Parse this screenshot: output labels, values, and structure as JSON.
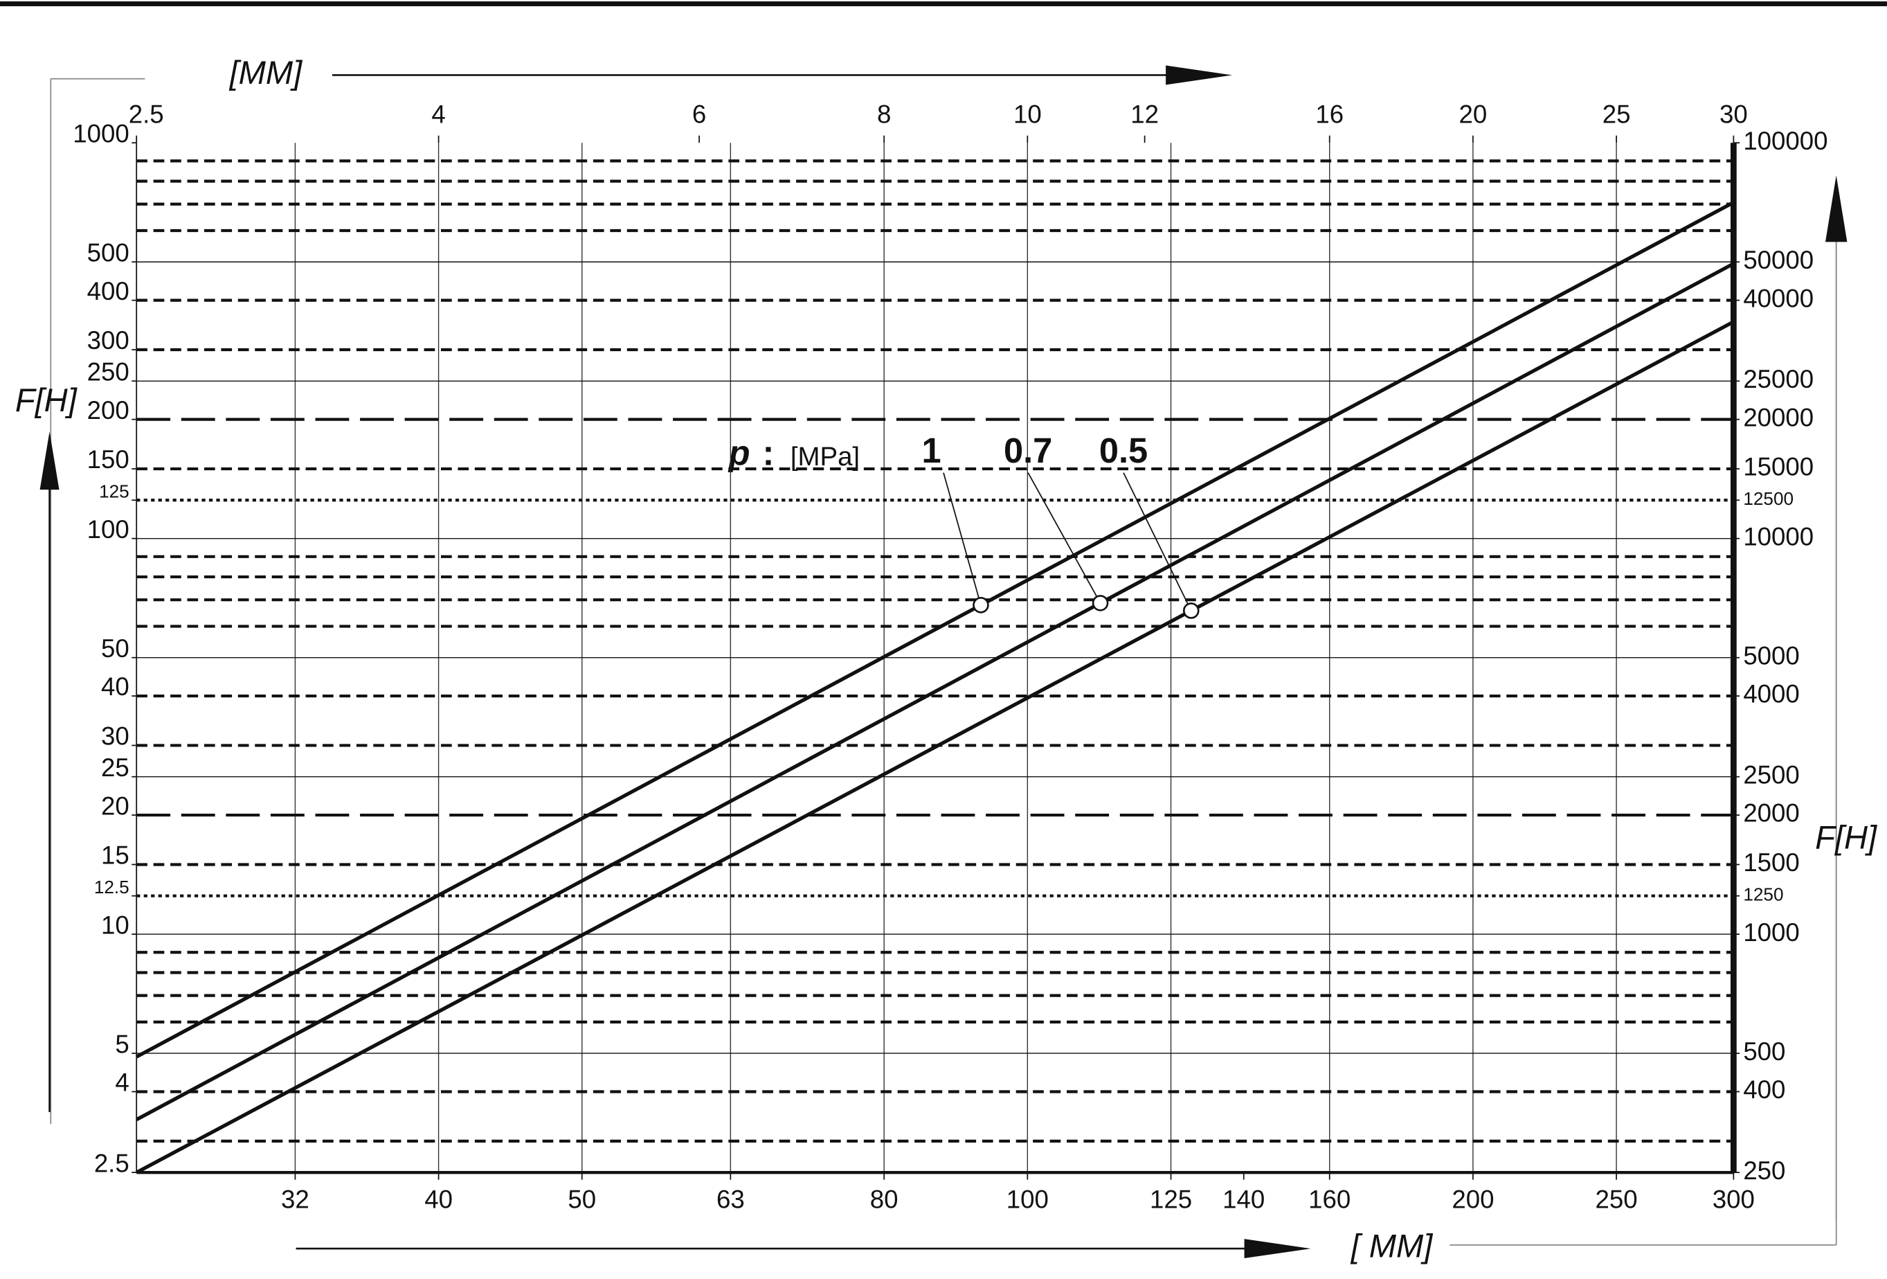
{
  "chart_data": {
    "type": "line",
    "log_x": true,
    "log_y": true,
    "x_label": "[MM]",
    "x2_label": "[ MM]",
    "y_label": "F[H]",
    "y2_label": "F[H]",
    "xlim": [
      2.5,
      30
    ],
    "xticks": [
      2.5,
      4,
      6,
      8,
      10,
      12,
      16,
      20,
      25,
      30
    ],
    "x2lim": [
      25,
      300
    ],
    "x2ticks": [
      32,
      40,
      50,
      63,
      80,
      100,
      125,
      140,
      160,
      200,
      250,
      300
    ],
    "vlines": [
      32,
      40,
      50,
      63,
      80,
      100,
      125,
      160,
      200,
      250
    ],
    "ylim": [
      2.5,
      1000
    ],
    "yticks": [
      2.5,
      4,
      5,
      10,
      12.5,
      15,
      20,
      25,
      30,
      40,
      50,
      100,
      125,
      150,
      200,
      250,
      300,
      400,
      500,
      1000
    ],
    "y2lim": [
      250,
      100000
    ],
    "y2ticks": [
      250,
      400,
      500,
      1000,
      1250,
      1500,
      2000,
      2500,
      4000,
      5000,
      10000,
      12500,
      15000,
      20000,
      25000,
      40000,
      50000,
      100000
    ],
    "hlines": [
      {
        "style": "solid",
        "values": [
          500,
          250,
          100,
          50,
          25,
          10,
          5
        ]
      },
      {
        "style": "dashed",
        "values": [
          900,
          800,
          700,
          600,
          400,
          300,
          150,
          90,
          80,
          70,
          60,
          40,
          30,
          15,
          9,
          8,
          7,
          6,
          4,
          3
        ]
      },
      {
        "style": "long-dash",
        "values": [
          200,
          20
        ]
      },
      {
        "style": "dotted",
        "values": [
          125,
          12.5
        ]
      }
    ],
    "legend_title": {
      "symbol": "p",
      "separator": ":",
      "unit": "[MPa]"
    },
    "x": [
      2.5,
      30
    ],
    "series": [
      {
        "name": "1",
        "color": "#111111",
        "values": [
          4.9,
          707
        ],
        "marker_x": 9.3
      },
      {
        "name": "0.7",
        "color": "#111111",
        "values": [
          3.4,
          495
        ],
        "marker_x": 11.2
      },
      {
        "name": "0.5",
        "color": "#111111",
        "values": [
          2.5,
          353
        ],
        "marker_x": 12.9
      }
    ]
  }
}
